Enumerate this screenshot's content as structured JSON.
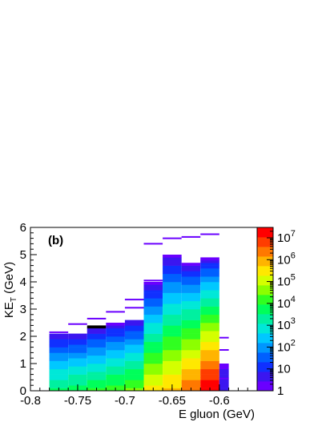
{
  "chart_data": {
    "type": "heatmap",
    "panel_label": "(b)",
    "xlabel": "E gluon (GeV)",
    "ylabel_main": "KE",
    "ylabel_sub": "T",
    "ylabel_unit": " (GeV)",
    "xlim": [
      -0.8,
      -0.56
    ],
    "ylim": [
      0,
      6
    ],
    "x_major_ticks": [
      -0.8,
      -0.75,
      -0.7,
      -0.65,
      -0.6
    ],
    "x_tick_labels": [
      "-0.8",
      "-0.75",
      "-0.7",
      "-0.65",
      "-0.6"
    ],
    "y_major_ticks": [
      0,
      1,
      2,
      3,
      4,
      5,
      6
    ],
    "y_tick_labels": [
      "0",
      "1",
      "2",
      "3",
      "4",
      "5",
      "6"
    ],
    "z_scale": "log",
    "zlim": [
      1,
      30000000
    ],
    "z_tick_values": [
      1,
      10,
      100,
      1000,
      10000,
      100000,
      1000000,
      10000000
    ],
    "z_tick_labels": [
      {
        "base": "1",
        "exp": ""
      },
      {
        "base": "10",
        "exp": ""
      },
      {
        "base": "10",
        "exp": "2"
      },
      {
        "base": "10",
        "exp": "3"
      },
      {
        "base": "10",
        "exp": "4"
      },
      {
        "base": "10",
        "exp": "5"
      },
      {
        "base": "10",
        "exp": "6"
      },
      {
        "base": "10",
        "exp": "7"
      }
    ],
    "palette": [
      "#6a00ff",
      "#3b16f0",
      "#1030ff",
      "#0060ff",
      "#0096ff",
      "#00c8ff",
      "#00e8d8",
      "#00f0a0",
      "#00ff5a",
      "#30ff20",
      "#8cff00",
      "#d4ff00",
      "#ffe800",
      "#ffb400",
      "#ff7800",
      "#ff3c00",
      "#ff0000"
    ],
    "columns": [
      {
        "x0": -0.78,
        "x1": -0.76,
        "ymax": 2.15,
        "log_peak": 3.4
      },
      {
        "x0": -0.76,
        "x1": -0.74,
        "ymax": 2.15,
        "log_peak": 3.6
      },
      {
        "x0": -0.74,
        "x1": -0.72,
        "ymax": 2.35,
        "log_peak": 3.8
      },
      {
        "x0": -0.72,
        "x1": -0.7,
        "ymax": 2.5,
        "log_peak": 4.0
      },
      {
        "x0": -0.7,
        "x1": -0.68,
        "ymax": 2.65,
        "log_peak": 4.3
      },
      {
        "x0": -0.68,
        "x1": -0.66,
        "ymax": 4.0,
        "log_peak": 5.2
      },
      {
        "x0": -0.66,
        "x1": -0.64,
        "ymax": 4.95,
        "log_peak": 5.6
      },
      {
        "x0": -0.64,
        "x1": -0.62,
        "ymax": 4.7,
        "log_peak": 6.3
      },
      {
        "x0": -0.62,
        "x1": -0.6,
        "ymax": 4.9,
        "log_peak": 7.3
      },
      {
        "x0": -0.6,
        "x1": -0.59,
        "ymax": 1.0,
        "log_peak": 0.6
      }
    ],
    "outlier_bins": [
      {
        "x0": -0.78,
        "x1": -0.76,
        "y": 2.15
      },
      {
        "x0": -0.76,
        "x1": -0.74,
        "y": 2.45
      },
      {
        "x0": -0.74,
        "x1": -0.72,
        "y": 2.65
      },
      {
        "x0": -0.72,
        "x1": -0.7,
        "y": 2.9
      },
      {
        "x0": -0.7,
        "x1": -0.68,
        "y": 3.05
      },
      {
        "x0": -0.7,
        "x1": -0.68,
        "y": 3.35
      },
      {
        "x0": -0.68,
        "x1": -0.66,
        "y": 4.05
      },
      {
        "x0": -0.68,
        "x1": -0.66,
        "y": 5.4
      },
      {
        "x0": -0.66,
        "x1": -0.64,
        "y": 5.6
      },
      {
        "x0": -0.64,
        "x1": -0.62,
        "y": 5.65
      },
      {
        "x0": -0.62,
        "x1": -0.6,
        "y": 5.75
      },
      {
        "x0": -0.6,
        "x1": -0.59,
        "y": 1.95
      },
      {
        "x0": -0.6,
        "x1": -0.59,
        "y": 1.5
      },
      {
        "x0": -0.6,
        "x1": -0.59,
        "y": 0.45
      }
    ]
  }
}
